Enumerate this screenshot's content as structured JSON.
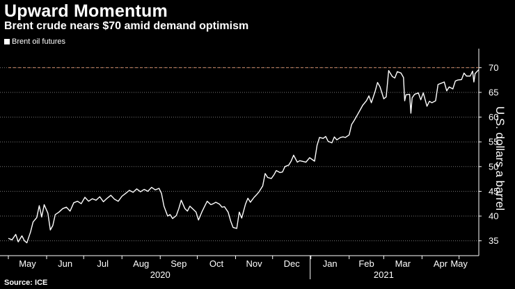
{
  "header": {
    "title": "Upward Momentum",
    "subtitle": "Brent crude nears $70 amid demand optimism"
  },
  "legend": {
    "label": "Brent oil futures"
  },
  "footer": {
    "source": "Source: ICE"
  },
  "colors": {
    "background": "#000000",
    "line": "#ffffff",
    "grid": "#777777",
    "reference_line": "#d08a6a"
  },
  "chart_data": {
    "type": "line",
    "title": "Upward Momentum",
    "subtitle": "Brent crude nears $70 amid demand optimism",
    "xlabel": "",
    "ylabel": "U.S. dollars a barrel",
    "ylim": [
      32,
      73
    ],
    "yticks": [
      35,
      40,
      45,
      50,
      55,
      60,
      65,
      70
    ],
    "xlim": [
      "2020-05-01",
      "2021-05-17"
    ],
    "month_ticks": [
      {
        "label": "May",
        "date": "2020-05-01"
      },
      {
        "label": "Jun",
        "date": "2020-06-01"
      },
      {
        "label": "Jul",
        "date": "2020-07-01"
      },
      {
        "label": "Aug",
        "date": "2020-08-01"
      },
      {
        "label": "Sep",
        "date": "2020-09-01"
      },
      {
        "label": "Oct",
        "date": "2020-10-01"
      },
      {
        "label": "Nov",
        "date": "2020-11-01"
      },
      {
        "label": "Dec",
        "date": "2020-12-01"
      },
      {
        "label": "Jan",
        "date": "2021-01-01"
      },
      {
        "label": "Feb",
        "date": "2021-02-01"
      },
      {
        "label": "Mar",
        "date": "2021-03-01"
      },
      {
        "label": "Apr",
        "date": "2021-04-01"
      },
      {
        "label": "May",
        "date": "2021-05-01"
      }
    ],
    "year_labels": [
      {
        "label": "2020",
        "date": "2020-09-01"
      },
      {
        "label": "2021",
        "date": "2021-03-01"
      }
    ],
    "year_divider_date": "2021-01-01",
    "reference_line": {
      "value": 70,
      "style": "dashed"
    },
    "series": [
      {
        "name": "Brent oil futures",
        "points": [
          [
            "2020-05-01",
            35.5
          ],
          [
            "2020-05-04",
            35.2
          ],
          [
            "2020-05-07",
            36.3
          ],
          [
            "2020-05-09",
            34.8
          ],
          [
            "2020-05-12",
            36.0
          ],
          [
            "2020-05-14",
            35.0
          ],
          [
            "2020-05-16",
            34.6
          ],
          [
            "2020-05-19",
            36.8
          ],
          [
            "2020-05-21",
            38.8
          ],
          [
            "2020-05-24",
            39.7
          ],
          [
            "2020-05-26",
            42.1
          ],
          [
            "2020-05-28",
            39.8
          ],
          [
            "2020-05-30",
            42.3
          ],
          [
            "2020-06-02",
            40.6
          ],
          [
            "2020-06-04",
            37.2
          ],
          [
            "2020-06-06",
            38.1
          ],
          [
            "2020-06-08",
            40.3
          ],
          [
            "2020-06-11",
            40.8
          ],
          [
            "2020-06-14",
            41.5
          ],
          [
            "2020-06-17",
            41.8
          ],
          [
            "2020-06-20",
            41.0
          ],
          [
            "2020-06-23",
            42.7
          ],
          [
            "2020-06-26",
            43.0
          ],
          [
            "2020-06-29",
            42.5
          ],
          [
            "2020-07-02",
            43.8
          ],
          [
            "2020-07-05",
            43.0
          ],
          [
            "2020-07-08",
            43.5
          ],
          [
            "2020-07-11",
            43.2
          ],
          [
            "2020-07-14",
            43.9
          ],
          [
            "2020-07-17",
            42.9
          ],
          [
            "2020-07-20",
            43.6
          ],
          [
            "2020-07-23",
            44.2
          ],
          [
            "2020-07-26",
            43.4
          ],
          [
            "2020-07-29",
            43.0
          ],
          [
            "2020-08-01",
            44.0
          ],
          [
            "2020-08-04",
            44.6
          ],
          [
            "2020-08-07",
            45.2
          ],
          [
            "2020-08-10",
            44.8
          ],
          [
            "2020-08-13",
            45.5
          ],
          [
            "2020-08-16",
            44.9
          ],
          [
            "2020-08-19",
            45.4
          ],
          [
            "2020-08-22",
            45.0
          ],
          [
            "2020-08-25",
            45.8
          ],
          [
            "2020-08-28",
            45.3
          ],
          [
            "2020-08-31",
            45.6
          ],
          [
            "2020-09-02",
            44.6
          ],
          [
            "2020-09-04",
            42.0
          ],
          [
            "2020-09-07",
            40.0
          ],
          [
            "2020-09-09",
            40.3
          ],
          [
            "2020-09-11",
            39.5
          ],
          [
            "2020-09-14",
            40.1
          ],
          [
            "2020-09-16",
            41.5
          ],
          [
            "2020-09-18",
            43.2
          ],
          [
            "2020-09-21",
            41.5
          ],
          [
            "2020-09-23",
            41.0
          ],
          [
            "2020-09-25",
            42.0
          ],
          [
            "2020-09-28",
            41.3
          ],
          [
            "2020-09-30",
            40.8
          ],
          [
            "2020-10-02",
            39.2
          ],
          [
            "2020-10-05",
            41.0
          ],
          [
            "2020-10-07",
            42.0
          ],
          [
            "2020-10-09",
            43.0
          ],
          [
            "2020-10-12",
            42.3
          ],
          [
            "2020-10-14",
            42.5
          ],
          [
            "2020-10-16",
            42.8
          ],
          [
            "2020-10-19",
            42.4
          ],
          [
            "2020-10-21",
            41.8
          ],
          [
            "2020-10-23",
            41.9
          ],
          [
            "2020-10-26",
            40.8
          ],
          [
            "2020-10-28",
            39.0
          ],
          [
            "2020-10-30",
            37.7
          ],
          [
            "2020-11-02",
            37.5
          ],
          [
            "2020-11-04",
            40.8
          ],
          [
            "2020-11-06",
            39.6
          ],
          [
            "2020-11-09",
            42.4
          ],
          [
            "2020-11-11",
            43.6
          ],
          [
            "2020-11-13",
            42.8
          ],
          [
            "2020-11-16",
            43.8
          ],
          [
            "2020-11-18",
            44.3
          ],
          [
            "2020-11-20",
            44.9
          ],
          [
            "2020-11-23",
            46.1
          ],
          [
            "2020-11-25",
            48.6
          ],
          [
            "2020-11-27",
            47.8
          ],
          [
            "2020-11-30",
            47.6
          ],
          [
            "2020-12-02",
            48.3
          ],
          [
            "2020-12-04",
            49.2
          ],
          [
            "2020-12-07",
            48.8
          ],
          [
            "2020-12-09",
            48.9
          ],
          [
            "2020-12-11",
            50.0
          ],
          [
            "2020-12-14",
            50.3
          ],
          [
            "2020-12-16",
            51.1
          ],
          [
            "2020-12-18",
            52.3
          ],
          [
            "2020-12-21",
            50.9
          ],
          [
            "2020-12-23",
            51.2
          ],
          [
            "2020-12-28",
            50.9
          ],
          [
            "2020-12-31",
            51.8
          ],
          [
            "2021-01-04",
            51.1
          ],
          [
            "2021-01-06",
            54.3
          ],
          [
            "2021-01-08",
            55.9
          ],
          [
            "2021-01-11",
            55.7
          ],
          [
            "2021-01-13",
            56.1
          ],
          [
            "2021-01-15",
            55.1
          ],
          [
            "2021-01-18",
            54.8
          ],
          [
            "2021-01-20",
            56.0
          ],
          [
            "2021-01-22",
            55.4
          ],
          [
            "2021-01-25",
            55.9
          ],
          [
            "2021-01-27",
            56.0
          ],
          [
            "2021-01-29",
            55.9
          ],
          [
            "2021-02-01",
            56.4
          ],
          [
            "2021-02-03",
            58.5
          ],
          [
            "2021-02-05",
            59.3
          ],
          [
            "2021-02-08",
            60.6
          ],
          [
            "2021-02-10",
            61.5
          ],
          [
            "2021-02-12",
            62.4
          ],
          [
            "2021-02-15",
            63.3
          ],
          [
            "2021-02-17",
            64.3
          ],
          [
            "2021-02-19",
            62.9
          ],
          [
            "2021-02-22",
            65.2
          ],
          [
            "2021-02-24",
            67.0
          ],
          [
            "2021-02-26",
            66.1
          ],
          [
            "2021-03-01",
            63.7
          ],
          [
            "2021-03-03",
            64.1
          ],
          [
            "2021-03-05",
            69.4
          ],
          [
            "2021-03-08",
            68.2
          ],
          [
            "2021-03-10",
            67.9
          ],
          [
            "2021-03-12",
            69.2
          ],
          [
            "2021-03-15",
            68.9
          ],
          [
            "2021-03-17",
            68.0
          ],
          [
            "2021-03-18",
            63.3
          ],
          [
            "2021-03-19",
            64.5
          ],
          [
            "2021-03-22",
            64.6
          ],
          [
            "2021-03-23",
            60.8
          ],
          [
            "2021-03-24",
            63.9
          ],
          [
            "2021-03-26",
            64.6
          ],
          [
            "2021-03-29",
            64.9
          ],
          [
            "2021-03-31",
            63.5
          ],
          [
            "2021-04-02",
            64.9
          ],
          [
            "2021-04-05",
            62.2
          ],
          [
            "2021-04-07",
            63.2
          ],
          [
            "2021-04-09",
            62.9
          ],
          [
            "2021-04-12",
            63.3
          ],
          [
            "2021-04-14",
            66.6
          ],
          [
            "2021-04-16",
            66.8
          ],
          [
            "2021-04-19",
            67.1
          ],
          [
            "2021-04-21",
            65.3
          ],
          [
            "2021-04-23",
            66.1
          ],
          [
            "2021-04-26",
            65.7
          ],
          [
            "2021-04-28",
            67.3
          ],
          [
            "2021-04-30",
            67.5
          ],
          [
            "2021-05-03",
            67.6
          ],
          [
            "2021-05-05",
            68.9
          ],
          [
            "2021-05-07",
            68.3
          ],
          [
            "2021-05-10",
            68.3
          ],
          [
            "2021-05-12",
            69.3
          ],
          [
            "2021-05-13",
            67.1
          ],
          [
            "2021-05-14",
            68.8
          ],
          [
            "2021-05-17",
            69.6
          ]
        ]
      }
    ]
  }
}
